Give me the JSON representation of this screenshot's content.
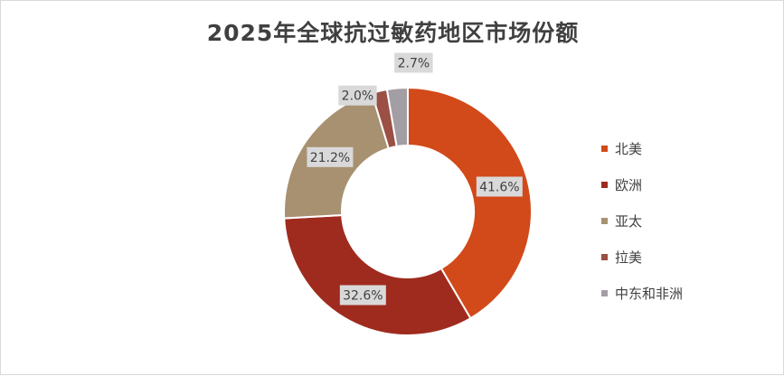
{
  "chart_data": {
    "type": "pie",
    "variant": "donut",
    "title": "2025年全球抗过敏药地区市场份额",
    "unit": "%",
    "categories": [
      "北美",
      "欧洲",
      "亚太",
      "拉美",
      "中东和非洲"
    ],
    "values": [
      41.6,
      32.6,
      21.2,
      2.0,
      2.7
    ],
    "labels": [
      "41.6%",
      "32.6%",
      "21.2%",
      "2.0%",
      "2.7%"
    ],
    "colors": [
      "#d24a1a",
      "#9e2b1e",
      "#a89170",
      "#9b4f45",
      "#a39ea3"
    ],
    "legend_position": "right"
  }
}
